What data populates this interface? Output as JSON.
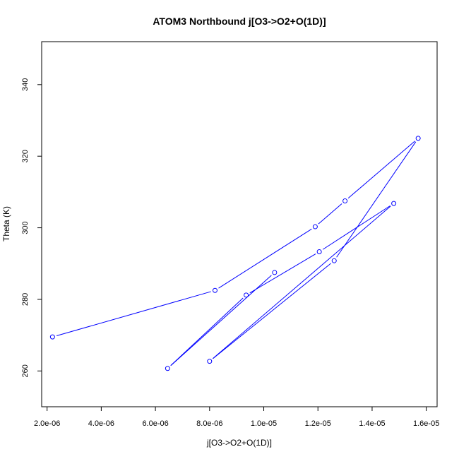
{
  "chart_data": {
    "type": "line",
    "title": "ATOM3 Northbound j[O3->O2+O(1D)]",
    "xlabel": "j[O3->O2+O(1D)]",
    "ylabel": "Theta (K)",
    "xlim": [
      1.8e-06,
      1.64e-05
    ],
    "ylim": [
      250,
      352
    ],
    "x_ticks": [
      2e-06,
      4e-06,
      6e-06,
      8e-06,
      1e-05,
      1.2e-05,
      1.4e-05,
      1.6e-05
    ],
    "x_tick_labels": [
      "2.0e-06",
      "4.0e-06",
      "6.0e-06",
      "8.0e-06",
      "1.0e-05",
      "1.2e-05",
      "1.4e-05",
      "1.6e-05"
    ],
    "y_ticks": [
      260,
      280,
      300,
      320,
      340
    ],
    "y_tick_labels": [
      "260",
      "280",
      "300",
      "320",
      "340"
    ],
    "grid": false,
    "legend": "none",
    "series": [
      {
        "color": "#0000ff",
        "marker": "open-circle",
        "points": [
          {
            "x": 2.2e-06,
            "y": 269.5
          },
          {
            "x": 8.2e-06,
            "y": 282.5
          },
          {
            "x": 1.19e-05,
            "y": 300.3
          },
          {
            "x": 1.3e-05,
            "y": 307.5
          },
          {
            "x": 1.57e-05,
            "y": 325.0
          },
          {
            "x": 1.26e-05,
            "y": 290.8
          },
          {
            "x": 8e-06,
            "y": 262.7
          },
          {
            "x": 1.48e-05,
            "y": 306.8
          },
          {
            "x": 1.205e-05,
            "y": 293.3
          },
          {
            "x": 9.35e-06,
            "y": 281.2
          },
          {
            "x": 6.45e-06,
            "y": 260.7
          },
          {
            "x": 1.04e-05,
            "y": 287.5
          }
        ]
      }
    ]
  }
}
